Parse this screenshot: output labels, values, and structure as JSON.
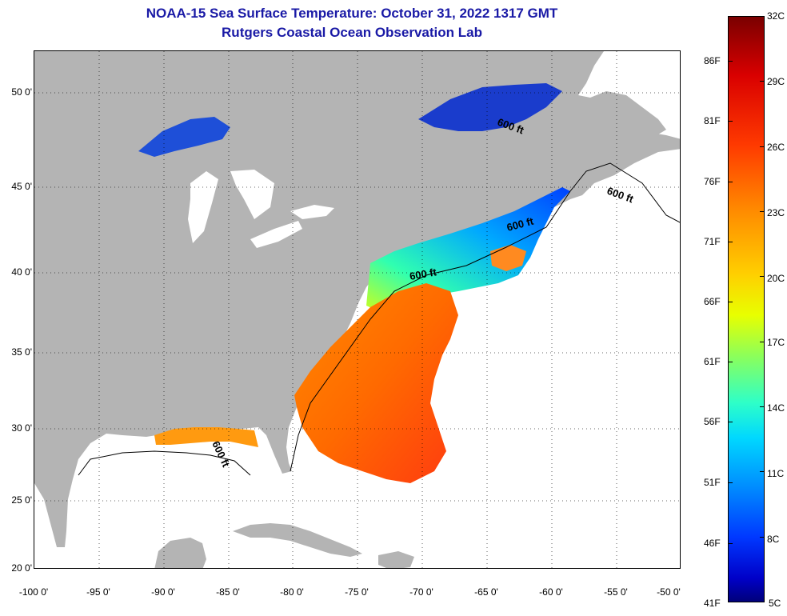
{
  "title": {
    "line1": "NOAA-15 Sea Surface Temperature:  October 31, 2022 1317 GMT",
    "line2": "Rutgers Coastal Ocean Observation Lab"
  },
  "map": {
    "land_color": "#b4b4b4",
    "no_data_color": "#ffffff",
    "grid": "dotted",
    "latitude_labels": [
      "50 0'",
      "45 0'",
      "40 0'",
      "35 0'",
      "30 0'",
      "25 0'",
      "20 0'"
    ],
    "longitude_labels": [
      "-100 0'",
      "-95 0'",
      "-90 0'",
      "-85 0'",
      "-80 0'",
      "-75 0'",
      "-70 0'",
      "-65 0'",
      "-60 0'",
      "-55 0'",
      "-50 0'"
    ],
    "contour_labels": [
      "600 ft",
      "600 ft",
      "600 ft",
      "600 ft",
      "600 ft"
    ]
  },
  "colorbar": {
    "celsius_labels": [
      "32C",
      "29C",
      "26C",
      "23C",
      "20C",
      "17C",
      "14C",
      "11C",
      "8C",
      "5C"
    ],
    "fahrenheit_labels": [
      "86F",
      "81F",
      "76F",
      "71F",
      "66F",
      "61F",
      "56F",
      "51F",
      "46F",
      "41F"
    ]
  }
}
